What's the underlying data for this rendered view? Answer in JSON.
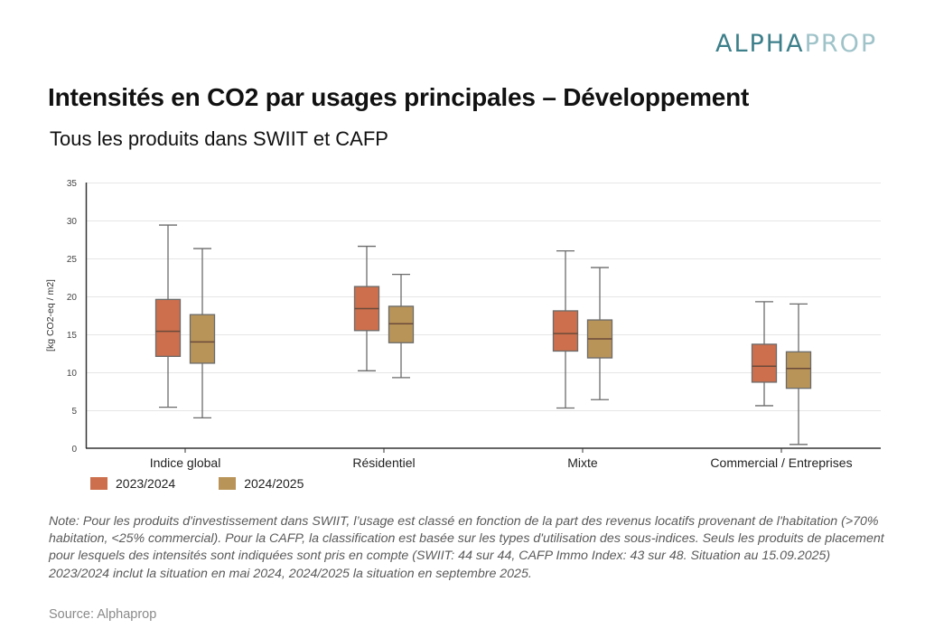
{
  "logo": {
    "part1": "ALPHA",
    "part2": "PROP"
  },
  "header": {
    "title": "Intensités en CO2 par usages principales – Développement",
    "subtitle": "Tous les produits dans SWIIT et CAFP"
  },
  "chart_data": {
    "type": "boxplot",
    "title": "Intensités en CO2 par usages principales – Développement",
    "subtitle": "Tous les produits dans SWIIT et CAFP",
    "xlabel": "",
    "ylabel": "[kg CO2-eq / m2]",
    "ylim": [
      0,
      35
    ],
    "yticks": [
      0,
      5,
      10,
      15,
      20,
      25,
      30,
      35
    ],
    "grid": true,
    "legend_position": "bottom-left",
    "categories": [
      "Indice global",
      "Résidentiel",
      "Mixte",
      "Commercial / Entreprises"
    ],
    "series": [
      {
        "name": "2023/2024",
        "color": "#cd6f4c",
        "boxes": [
          {
            "min": 5.4,
            "q1": 12.1,
            "median": 15.4,
            "q3": 19.6,
            "max": 29.4
          },
          {
            "min": 10.2,
            "q1": 15.5,
            "median": 18.4,
            "q3": 21.3,
            "max": 26.6
          },
          {
            "min": 5.3,
            "q1": 12.8,
            "median": 15.1,
            "q3": 18.1,
            "max": 26.0
          },
          {
            "min": 5.6,
            "q1": 8.7,
            "median": 10.8,
            "q3": 13.7,
            "max": 19.3
          }
        ]
      },
      {
        "name": "2024/2025",
        "color": "#b99458",
        "boxes": [
          {
            "min": 4.0,
            "q1": 11.2,
            "median": 14.0,
            "q3": 17.6,
            "max": 26.3
          },
          {
            "min": 9.3,
            "q1": 13.9,
            "median": 16.4,
            "q3": 18.7,
            "max": 22.9
          },
          {
            "min": 6.4,
            "q1": 11.9,
            "median": 14.4,
            "q3": 16.9,
            "max": 23.8
          },
          {
            "min": 0.5,
            "q1": 7.9,
            "median": 10.5,
            "q3": 12.7,
            "max": 19.0
          }
        ]
      }
    ]
  },
  "legend": [
    {
      "label": "2023/2024",
      "color": "#cd6f4c"
    },
    {
      "label": "2024/2025",
      "color": "#b99458"
    }
  ],
  "note": "Note: Pour les produits d'investissement dans SWIIT, l’usage est classé en fonction de la part des revenus locatifs provenant de l'habitation (>70% habitation, <25% commercial). Pour la CAFP, la classification est basée sur les types d'utilisation des sous-indices. Seuls les produits de placement pour lesquels des intensités sont indiquées sont pris en compte (SWIIT: 44 sur 44, CAFP Immo Index: 43 sur 48. Situation au 15.09.2025)",
  "note2": "2023/2024 inclut la situation en mai 2024, 2024/2025 la situation en septembre 2025.",
  "source": "Source: Alphaprop"
}
